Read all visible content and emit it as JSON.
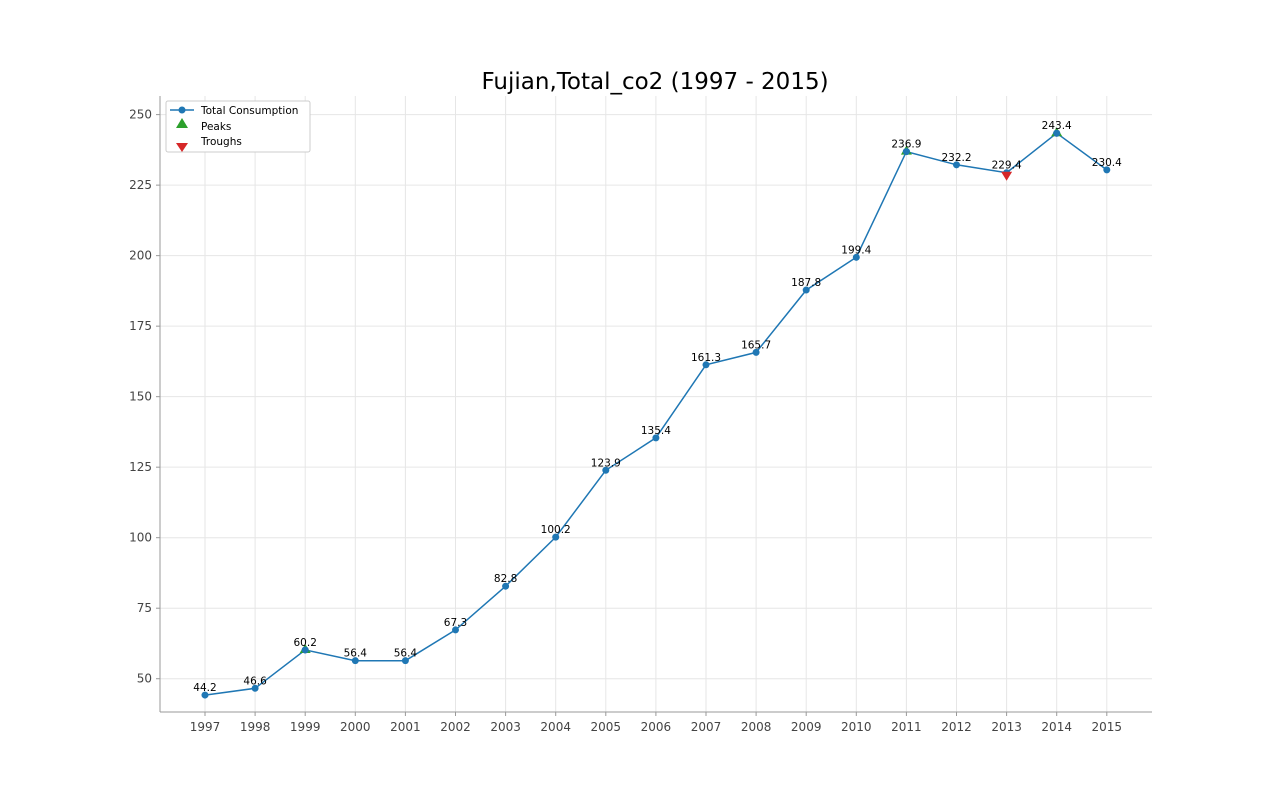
{
  "chart_data": {
    "type": "line",
    "title": "Fujian,Total_co2 (1997 - 2015)",
    "xlabel": "",
    "ylabel": "",
    "categories": [
      "1997",
      "1998",
      "1999",
      "2000",
      "2001",
      "2002",
      "2003",
      "2004",
      "2005",
      "2006",
      "2007",
      "2008",
      "2009",
      "2010",
      "2011",
      "2012",
      "2013",
      "2014",
      "2015"
    ],
    "series": [
      {
        "name": "Total Consumption",
        "values": [
          44.2,
          46.6,
          60.2,
          56.4,
          56.4,
          67.3,
          82.8,
          100.2,
          123.9,
          135.4,
          161.3,
          165.7,
          187.8,
          199.4,
          236.9,
          232.2,
          229.4,
          243.4,
          230.4
        ],
        "labels": [
          "44.2",
          "46.6",
          "60.2",
          "56.4",
          "56.4",
          "67.3",
          "82.8",
          "100.2",
          "123.9",
          "135.4",
          "161.3",
          "165.7",
          "187.8",
          "199.4",
          "236.9",
          "232.2",
          "229.4",
          "243.4",
          "230.4"
        ],
        "color": "#1f77b4"
      }
    ],
    "peaks": {
      "name": "Peaks",
      "indices": [
        2,
        14,
        17
      ],
      "color": "#2ca02c",
      "marker": "triangle-up"
    },
    "troughs": {
      "name": "Troughs",
      "indices": [
        16
      ],
      "color": "#d62728",
      "marker": "triangle-down"
    },
    "yticks": [
      50,
      75,
      100,
      125,
      150,
      175,
      200,
      225,
      250
    ],
    "ylim": [
      38.2,
      256.6
    ],
    "grid": true,
    "legend_position": "top-left"
  }
}
